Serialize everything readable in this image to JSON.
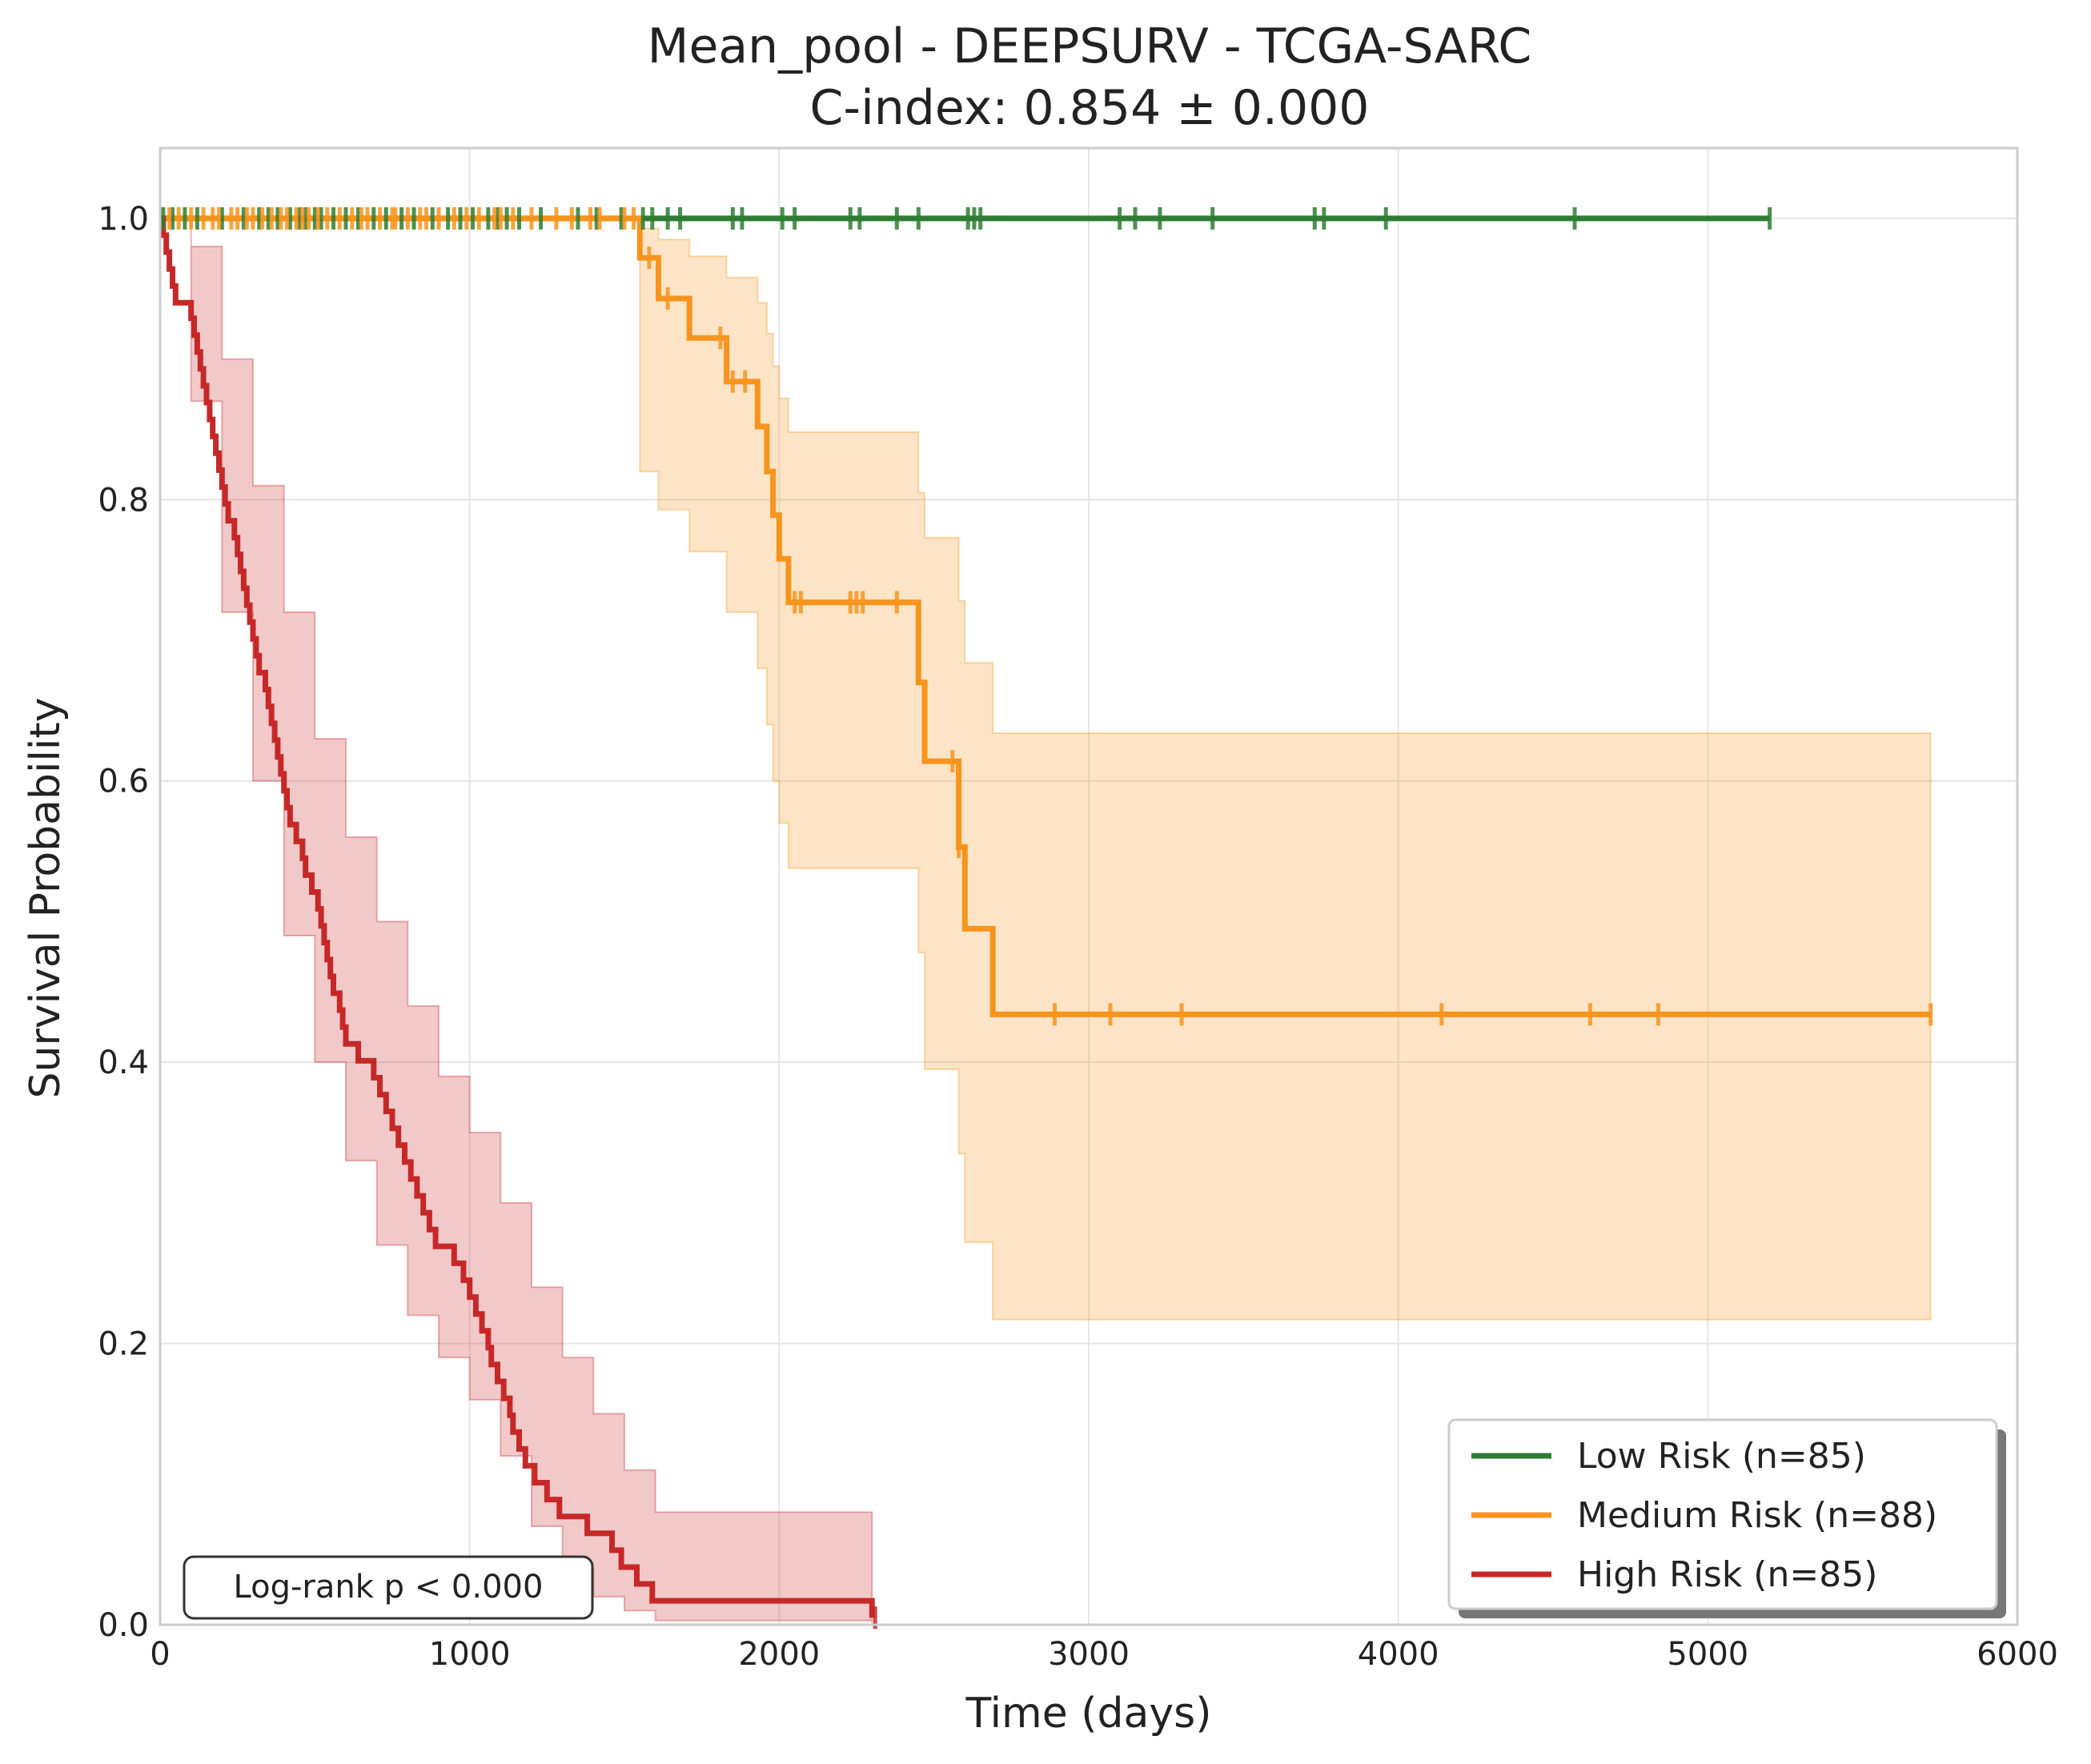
{
  "chart_data": {
    "type": "line",
    "title": "Mean_pool - DEEPSURV - TCGA-SARC",
    "subtitle": "C-index: 0.854 ± 0.000",
    "xlabel": "Time (days)",
    "ylabel": "Survival Probability",
    "xlim": [
      0,
      6000
    ],
    "ylim": [
      0,
      1.05
    ],
    "x_ticks": [
      0,
      1000,
      2000,
      3000,
      4000,
      5000,
      6000
    ],
    "x_tick_labels": [
      "0",
      "1000",
      "2000",
      "3000",
      "4000",
      "5000",
      "6000"
    ],
    "y_ticks": [
      0,
      0.2,
      0.4,
      0.6,
      0.8,
      1.0
    ],
    "y_tick_labels": [
      "0.0",
      "0.2",
      "0.4",
      "0.6",
      "0.8",
      "1.0"
    ],
    "grid": true,
    "legend_placement": "lower-right",
    "annotation": "Log-rank p < 0.000",
    "series": [
      {
        "name": "Low Risk (n=85)",
        "color": "#2e7d32",
        "band_color": "#2e7d32",
        "steps": [
          [
            0,
            1.0
          ],
          [
            5200,
            1.0
          ]
        ],
        "ci_lower": [
          [
            0,
            1.0
          ],
          [
            5200,
            1.0
          ]
        ],
        "ci_upper": [
          [
            0,
            1.0
          ],
          [
            5200,
            1.0
          ]
        ],
        "censored": [
          10,
          40,
          80,
          120,
          200,
          270,
          320,
          350,
          380,
          420,
          450,
          470,
          500,
          520,
          560,
          600,
          640,
          690,
          730,
          780,
          820,
          880,
          930,
          970,
          1010,
          1060,
          1090,
          1120,
          1160,
          1230,
          1350,
          1410,
          1490,
          1560,
          1590,
          1640,
          1680,
          1850,
          1880,
          2010,
          2050,
          2230,
          2260,
          2380,
          2450,
          2610,
          2630,
          2650,
          3100,
          3150,
          3230,
          3400,
          3730,
          3760,
          3960,
          4570,
          5200
        ]
      },
      {
        "name": "Medium Risk (n=88)",
        "color": "#f7941d",
        "band_color": "#f7941d",
        "steps": [
          [
            0,
            1.0
          ],
          [
            1550,
            1.0
          ],
          [
            1550,
            0.972
          ],
          [
            1610,
            0.972
          ],
          [
            1610,
            0.943
          ],
          [
            1710,
            0.943
          ],
          [
            1710,
            0.915
          ],
          [
            1830,
            0.915
          ],
          [
            1830,
            0.884
          ],
          [
            1930,
            0.884
          ],
          [
            1930,
            0.852
          ],
          [
            1960,
            0.852
          ],
          [
            1960,
            0.82
          ],
          [
            1980,
            0.82
          ],
          [
            1980,
            0.789
          ],
          [
            2000,
            0.789
          ],
          [
            2000,
            0.758
          ],
          [
            2030,
            0.758
          ],
          [
            2030,
            0.727
          ],
          [
            2450,
            0.727
          ],
          [
            2450,
            0.67
          ],
          [
            2470,
            0.67
          ],
          [
            2470,
            0.614
          ],
          [
            2580,
            0.614
          ],
          [
            2580,
            0.553
          ],
          [
            2600,
            0.553
          ],
          [
            2600,
            0.495
          ],
          [
            2690,
            0.495
          ],
          [
            2690,
            0.434
          ],
          [
            5720,
            0.434
          ]
        ],
        "ci_lower": [
          [
            0,
            1.0
          ],
          [
            1550,
            1.0
          ],
          [
            1550,
            0.82
          ],
          [
            1610,
            0.82
          ],
          [
            1610,
            0.793
          ],
          [
            1710,
            0.793
          ],
          [
            1710,
            0.763
          ],
          [
            1830,
            0.763
          ],
          [
            1830,
            0.72
          ],
          [
            1930,
            0.72
          ],
          [
            1930,
            0.68
          ],
          [
            1960,
            0.68
          ],
          [
            1960,
            0.64
          ],
          [
            1980,
            0.64
          ],
          [
            1980,
            0.6
          ],
          [
            2000,
            0.6
          ],
          [
            2000,
            0.57
          ],
          [
            2030,
            0.57
          ],
          [
            2030,
            0.538
          ],
          [
            2450,
            0.538
          ],
          [
            2450,
            0.478
          ],
          [
            2470,
            0.478
          ],
          [
            2470,
            0.395
          ],
          [
            2580,
            0.395
          ],
          [
            2580,
            0.335
          ],
          [
            2600,
            0.335
          ],
          [
            2600,
            0.272
          ],
          [
            2690,
            0.272
          ],
          [
            2690,
            0.217
          ],
          [
            5720,
            0.217
          ]
        ],
        "ci_upper": [
          [
            0,
            1.0
          ],
          [
            1550,
            1.0
          ],
          [
            1550,
            0.993
          ],
          [
            1610,
            0.993
          ],
          [
            1610,
            0.985
          ],
          [
            1710,
            0.985
          ],
          [
            1710,
            0.973
          ],
          [
            1830,
            0.973
          ],
          [
            1830,
            0.958
          ],
          [
            1930,
            0.958
          ],
          [
            1930,
            0.94
          ],
          [
            1960,
            0.94
          ],
          [
            1960,
            0.918
          ],
          [
            1980,
            0.918
          ],
          [
            1980,
            0.895
          ],
          [
            2000,
            0.895
          ],
          [
            2000,
            0.872
          ],
          [
            2030,
            0.872
          ],
          [
            2030,
            0.848
          ],
          [
            2450,
            0.848
          ],
          [
            2450,
            0.805
          ],
          [
            2470,
            0.805
          ],
          [
            2470,
            0.773
          ],
          [
            2580,
            0.773
          ],
          [
            2580,
            0.728
          ],
          [
            2600,
            0.728
          ],
          [
            2600,
            0.684
          ],
          [
            2690,
            0.684
          ],
          [
            2690,
            0.634
          ],
          [
            5720,
            0.634
          ]
        ],
        "censored": [
          30,
          60,
          100,
          140,
          170,
          190,
          230,
          250,
          280,
          300,
          330,
          360,
          390,
          410,
          440,
          460,
          480,
          510,
          540,
          580,
          620,
          650,
          670,
          710,
          750,
          760,
          800,
          840,
          860,
          900,
          950,
          990,
          1030,
          1080,
          1100,
          1140,
          1200,
          1280,
          1330,
          1390,
          1420,
          1500,
          1530,
          1580,
          1640,
          1810,
          1850,
          1890,
          2050,
          2070,
          2230,
          2250,
          2270,
          2380,
          2560,
          2580,
          2890,
          3070,
          3300,
          4140,
          4620,
          4840,
          5720
        ]
      },
      {
        "name": "High Risk (n=85)",
        "color": "#c62828",
        "band_color": "#c62828",
        "steps": [
          [
            0,
            1.0
          ],
          [
            10,
            0.988
          ],
          [
            20,
            0.976
          ],
          [
            30,
            0.964
          ],
          [
            40,
            0.952
          ],
          [
            50,
            0.94
          ],
          [
            90,
            0.94
          ],
          [
            100,
            0.929
          ],
          [
            110,
            0.917
          ],
          [
            120,
            0.905
          ],
          [
            130,
            0.893
          ],
          [
            140,
            0.881
          ],
          [
            150,
            0.869
          ],
          [
            160,
            0.857
          ],
          [
            170,
            0.845
          ],
          [
            180,
            0.833
          ],
          [
            190,
            0.821
          ],
          [
            200,
            0.809
          ],
          [
            210,
            0.797
          ],
          [
            220,
            0.785
          ],
          [
            240,
            0.773
          ],
          [
            250,
            0.761
          ],
          [
            260,
            0.749
          ],
          [
            270,
            0.737
          ],
          [
            280,
            0.725
          ],
          [
            290,
            0.713
          ],
          [
            300,
            0.701
          ],
          [
            310,
            0.689
          ],
          [
            320,
            0.677
          ],
          [
            340,
            0.665
          ],
          [
            350,
            0.653
          ],
          [
            360,
            0.641
          ],
          [
            370,
            0.629
          ],
          [
            380,
            0.617
          ],
          [
            390,
            0.605
          ],
          [
            400,
            0.593
          ],
          [
            410,
            0.581
          ],
          [
            420,
            0.569
          ],
          [
            440,
            0.557
          ],
          [
            460,
            0.545
          ],
          [
            470,
            0.533
          ],
          [
            490,
            0.521
          ],
          [
            510,
            0.509
          ],
          [
            520,
            0.497
          ],
          [
            530,
            0.485
          ],
          [
            540,
            0.473
          ],
          [
            550,
            0.461
          ],
          [
            560,
            0.449
          ],
          [
            580,
            0.437
          ],
          [
            590,
            0.425
          ],
          [
            600,
            0.413
          ],
          [
            640,
            0.401
          ],
          [
            690,
            0.389
          ],
          [
            710,
            0.377
          ],
          [
            730,
            0.365
          ],
          [
            750,
            0.353
          ],
          [
            770,
            0.341
          ],
          [
            790,
            0.329
          ],
          [
            810,
            0.317
          ],
          [
            830,
            0.305
          ],
          [
            850,
            0.293
          ],
          [
            870,
            0.281
          ],
          [
            890,
            0.269
          ],
          [
            950,
            0.257
          ],
          [
            980,
            0.245
          ],
          [
            1000,
            0.233
          ],
          [
            1020,
            0.221
          ],
          [
            1040,
            0.209
          ],
          [
            1060,
            0.197
          ],
          [
            1070,
            0.185
          ],
          [
            1090,
            0.173
          ],
          [
            1110,
            0.161
          ],
          [
            1130,
            0.149
          ],
          [
            1140,
            0.137
          ],
          [
            1160,
            0.125
          ],
          [
            1180,
            0.113
          ],
          [
            1210,
            0.101
          ],
          [
            1250,
            0.089
          ],
          [
            1290,
            0.077
          ],
          [
            1380,
            0.065
          ],
          [
            1460,
            0.053
          ],
          [
            1490,
            0.041
          ],
          [
            1540,
            0.029
          ],
          [
            1590,
            0.017
          ],
          [
            2300,
            0.005
          ]
        ],
        "ci_lower": [
          [
            0,
            1.0
          ],
          [
            100,
            0.87
          ],
          [
            200,
            0.72
          ],
          [
            300,
            0.6
          ],
          [
            400,
            0.49
          ],
          [
            500,
            0.4
          ],
          [
            600,
            0.33
          ],
          [
            700,
            0.27
          ],
          [
            800,
            0.22
          ],
          [
            900,
            0.19
          ],
          [
            1000,
            0.16
          ],
          [
            1100,
            0.12
          ],
          [
            1200,
            0.07
          ],
          [
            1300,
            0.04
          ],
          [
            1400,
            0.02
          ],
          [
            1500,
            0.01
          ],
          [
            1600,
            0.003
          ],
          [
            2300,
            0.001
          ]
        ],
        "ci_upper": [
          [
            0,
            1.0
          ],
          [
            100,
            0.98
          ],
          [
            200,
            0.9
          ],
          [
            300,
            0.81
          ],
          [
            400,
            0.72
          ],
          [
            500,
            0.63
          ],
          [
            600,
            0.56
          ],
          [
            700,
            0.5
          ],
          [
            800,
            0.44
          ],
          [
            900,
            0.39
          ],
          [
            1000,
            0.35
          ],
          [
            1100,
            0.3
          ],
          [
            1200,
            0.24
          ],
          [
            1300,
            0.19
          ],
          [
            1400,
            0.15
          ],
          [
            1500,
            0.11
          ],
          [
            1600,
            0.08
          ],
          [
            2300,
            0.06
          ]
        ],
        "censored": [
          2310
        ]
      }
    ]
  }
}
